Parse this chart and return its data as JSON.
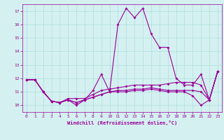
{
  "xlabel": "Windchill (Refroidissement éolien,°C)",
  "xlim": [
    -0.5,
    23.5
  ],
  "ylim": [
    9.5,
    17.5
  ],
  "yticks": [
    10,
    11,
    12,
    13,
    14,
    15,
    16,
    17
  ],
  "xticks": [
    0,
    1,
    2,
    3,
    4,
    5,
    6,
    7,
    8,
    9,
    10,
    11,
    12,
    13,
    14,
    15,
    16,
    17,
    18,
    19,
    20,
    21,
    22,
    23
  ],
  "background_color": "#d4f0f0",
  "line_color": "#990099",
  "grid_color": "#b0dede",
  "line1_y": [
    11.9,
    11.9,
    11.0,
    10.3,
    10.2,
    10.4,
    10.0,
    10.4,
    11.1,
    12.3,
    11.0,
    16.0,
    17.2,
    16.5,
    17.2,
    15.3,
    14.3,
    14.3,
    12.0,
    11.5,
    11.5,
    12.3,
    10.4,
    12.5
  ],
  "line2_y": [
    11.9,
    11.9,
    11.0,
    10.3,
    10.2,
    10.5,
    10.5,
    10.5,
    10.8,
    11.1,
    11.2,
    11.3,
    11.4,
    11.5,
    11.5,
    11.5,
    11.5,
    11.6,
    11.7,
    11.7,
    11.7,
    11.5,
    10.4,
    12.5
  ],
  "line3_y": [
    11.9,
    11.9,
    11.0,
    10.3,
    10.2,
    10.4,
    10.2,
    10.4,
    10.6,
    10.8,
    11.0,
    11.1,
    11.1,
    11.2,
    11.2,
    11.3,
    11.2,
    11.1,
    11.1,
    11.1,
    11.1,
    11.0,
    10.4,
    12.5
  ],
  "line4_y": [
    11.9,
    11.9,
    11.0,
    10.3,
    10.2,
    10.4,
    10.2,
    10.4,
    10.6,
    10.8,
    11.0,
    11.0,
    11.0,
    11.1,
    11.1,
    11.2,
    11.1,
    11.0,
    11.0,
    11.0,
    10.7,
    10.0,
    10.4,
    12.5
  ]
}
